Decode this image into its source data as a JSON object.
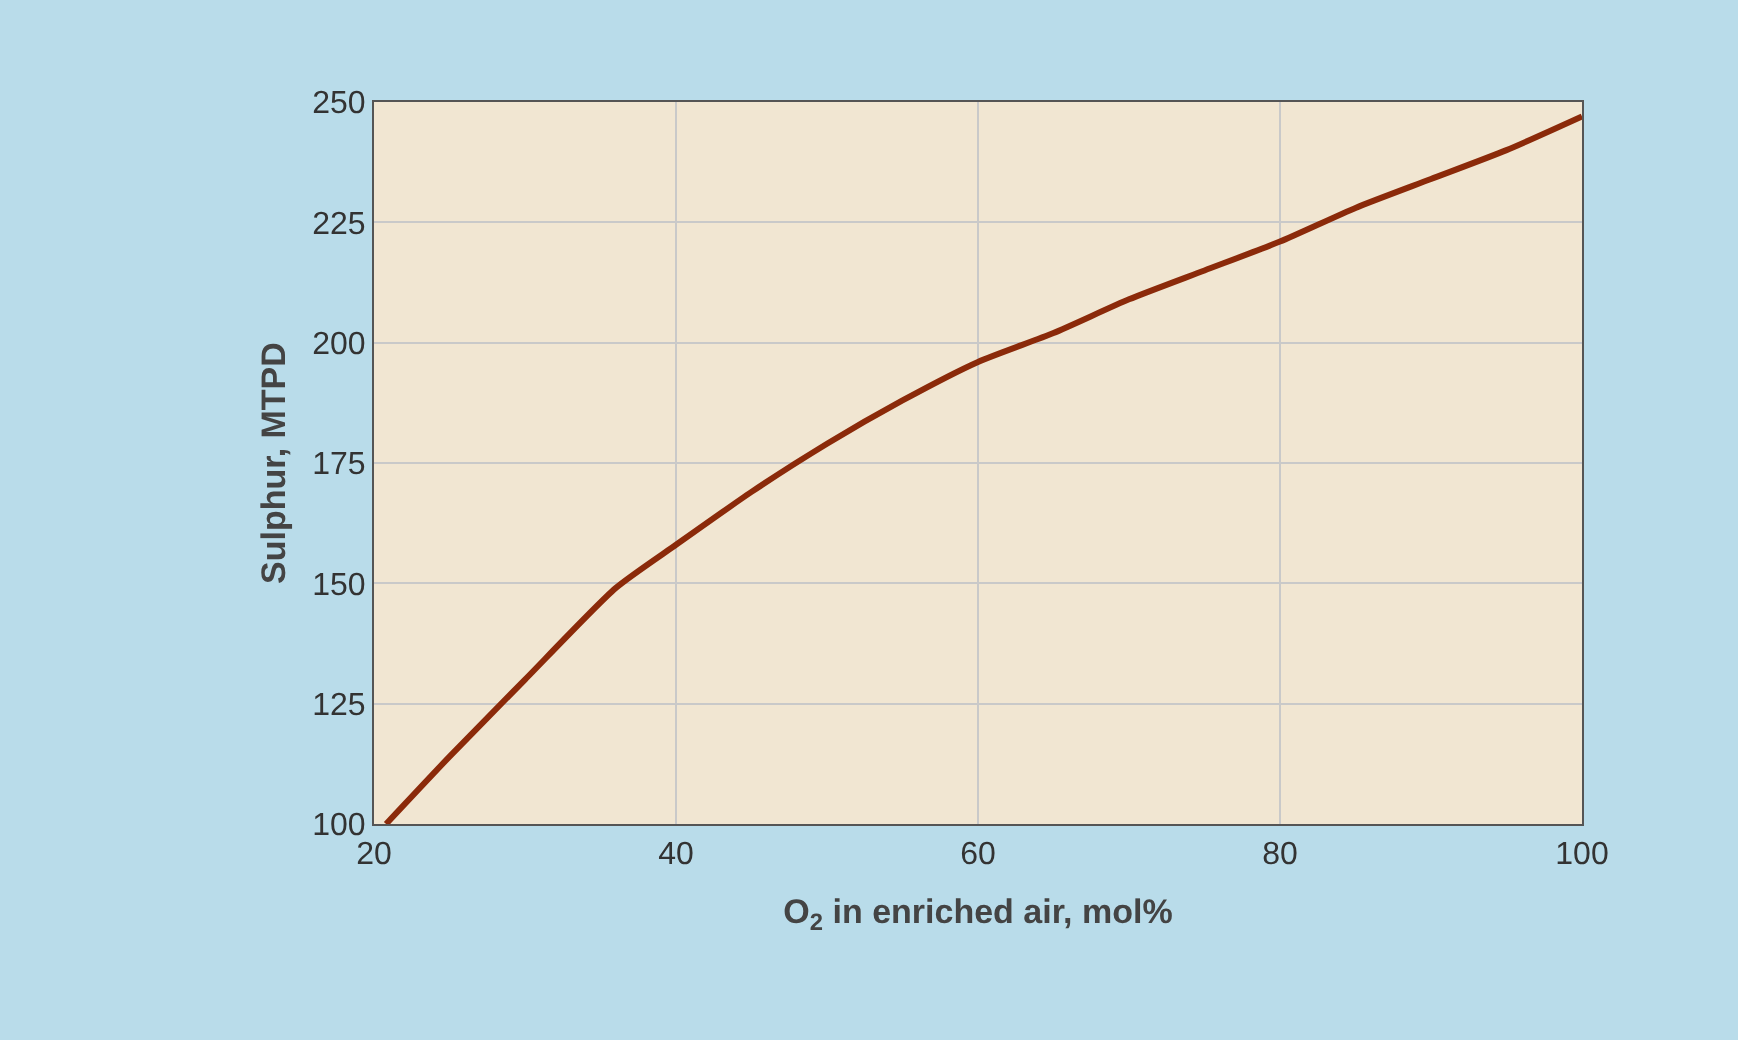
{
  "chart_data": {
    "type": "line",
    "xlabel": "O$_{2}$ in enriched air, mol%",
    "ylabel": "Sulphur, MTPD",
    "x": [
      20.8,
      25,
      30,
      36,
      40,
      45,
      50,
      55,
      60,
      65,
      70,
      75,
      80,
      85,
      90,
      95,
      100
    ],
    "series": [
      {
        "color": "#8b2a0a",
        "values": [
          100,
          114,
          130,
          149,
          158,
          169,
          179,
          188,
          196,
          202,
          209,
          215,
          221,
          228,
          234,
          240,
          247
        ]
      }
    ],
    "xlim": [
      20,
      100
    ],
    "ylim": [
      100,
      250
    ],
    "xticks": [
      20,
      40,
      60,
      80,
      100
    ],
    "yticks": [
      100,
      125,
      150,
      175,
      200,
      225,
      250
    ],
    "grid": true,
    "marker": "none",
    "line_style": "solid"
  }
}
